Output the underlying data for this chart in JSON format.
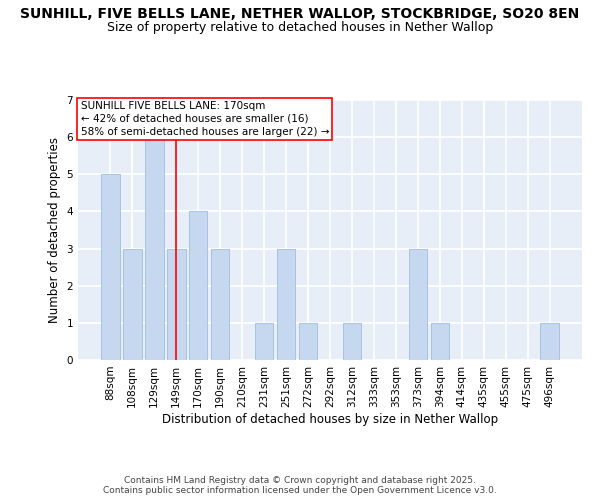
{
  "title_line1": "SUNHILL, FIVE BELLS LANE, NETHER WALLOP, STOCKBRIDGE, SO20 8EN",
  "title_line2": "Size of property relative to detached houses in Nether Wallop",
  "xlabel": "Distribution of detached houses by size in Nether Wallop",
  "ylabel": "Number of detached properties",
  "categories": [
    "88sqm",
    "108sqm",
    "129sqm",
    "149sqm",
    "170sqm",
    "190sqm",
    "210sqm",
    "231sqm",
    "251sqm",
    "272sqm",
    "292sqm",
    "312sqm",
    "333sqm",
    "353sqm",
    "373sqm",
    "394sqm",
    "414sqm",
    "435sqm",
    "455sqm",
    "475sqm",
    "496sqm"
  ],
  "values": [
    5,
    3,
    6,
    3,
    4,
    3,
    0,
    1,
    3,
    1,
    0,
    1,
    0,
    0,
    3,
    1,
    0,
    0,
    0,
    0,
    1
  ],
  "highlight_bar_index": 3,
  "vertical_line_index": 3,
  "bar_color": "#c5d8f0",
  "bar_edge_color": "#a0bede",
  "ylim": [
    0,
    7
  ],
  "yticks": [
    0,
    1,
    2,
    3,
    4,
    5,
    6,
    7
  ],
  "annotation_box_text": "SUNHILL FIVE BELLS LANE: 170sqm\n← 42% of detached houses are smaller (16)\n58% of semi-detached houses are larger (22) →",
  "footer_text": "Contains HM Land Registry data © Crown copyright and database right 2025.\nContains public sector information licensed under the Open Government Licence v3.0.",
  "background_color": "#ffffff",
  "plot_bg_color": "#e8eef8",
  "grid_color": "#ffffff",
  "title_fontsize": 10,
  "subtitle_fontsize": 9,
  "axis_label_fontsize": 8.5,
  "tick_fontsize": 7.5,
  "annotation_fontsize": 7.5,
  "footer_fontsize": 6.5
}
